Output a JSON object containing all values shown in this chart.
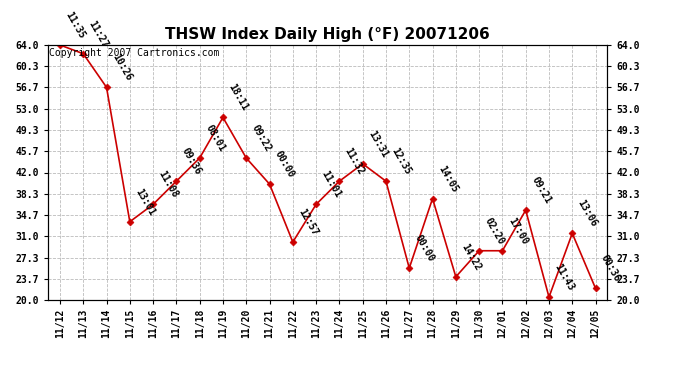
{
  "title": "THSW Index Daily High (°F) 20071206",
  "copyright": "Copyright 2007 Cartronics.com",
  "x_labels": [
    "11/12",
    "11/13",
    "11/14",
    "11/15",
    "11/16",
    "11/17",
    "11/18",
    "11/19",
    "11/20",
    "11/21",
    "11/22",
    "11/23",
    "11/24",
    "11/25",
    "11/26",
    "11/27",
    "11/28",
    "11/29",
    "11/30",
    "12/01",
    "12/02",
    "12/03",
    "12/04",
    "12/05"
  ],
  "y_values": [
    64.0,
    62.5,
    56.7,
    33.5,
    36.5,
    40.5,
    44.5,
    51.5,
    44.5,
    40.0,
    30.0,
    36.5,
    40.5,
    43.5,
    40.5,
    25.5,
    37.5,
    24.0,
    28.5,
    28.5,
    35.5,
    20.5,
    31.5,
    22.0
  ],
  "time_labels": [
    "11:35",
    "11:27",
    "10:26",
    "13:01",
    "11:08",
    "09:36",
    "08:01",
    "18:11",
    "09:22",
    "00:00",
    "12:57",
    "11:01",
    "11:32",
    "13:31",
    "12:35",
    "00:00",
    "14:05",
    "14:22",
    "02:20",
    "17:00",
    "09:21",
    "11:43",
    "13:06",
    "00:36"
  ],
  "y_ticks": [
    20.0,
    23.7,
    27.3,
    31.0,
    34.7,
    38.3,
    42.0,
    45.7,
    49.3,
    53.0,
    56.7,
    60.3,
    64.0
  ],
  "ylim": [
    20.0,
    64.0
  ],
  "line_color": "#cc0000",
  "marker_color": "#cc0000",
  "bg_color": "#ffffff",
  "grid_color": "#bbbbbb",
  "title_fontsize": 11,
  "label_fontsize": 7,
  "tick_fontsize": 7,
  "copyright_fontsize": 7
}
